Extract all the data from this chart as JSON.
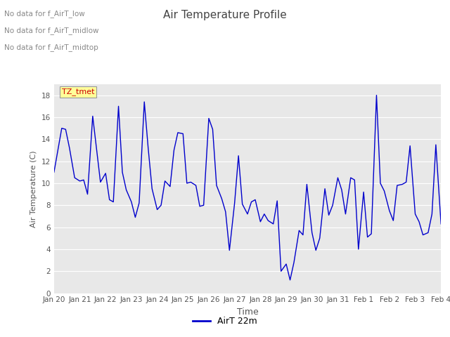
{
  "title": "Air Temperature Profile",
  "xlabel": "Time",
  "ylabel": "Air Temperature (C)",
  "legend_label": "AirT 22m",
  "line_color": "#0000cc",
  "background_color": "#e8e8e8",
  "ylim": [
    0,
    19
  ],
  "yticks": [
    0,
    2,
    4,
    6,
    8,
    10,
    12,
    14,
    16,
    18
  ],
  "x_tick_labels": [
    "Jan 20",
    "Jan 21",
    "Jan 22",
    "Jan 23",
    "Jan 24",
    "Jan 25",
    "Jan 26",
    "Jan 27",
    "Jan 28",
    "Jan 29",
    "Jan 30",
    "Jan 31",
    "Feb 1",
    "Feb 2",
    "Feb 3",
    "Feb 4"
  ],
  "annotations": [
    "No data for f_AirT_low",
    "No data for f_AirT_midlow",
    "No data for f_AirT_midtop"
  ],
  "annotation_box_label": "TZ_tmet",
  "x_values": [
    0,
    0.15,
    0.3,
    0.45,
    0.6,
    0.8,
    1.0,
    1.15,
    1.3,
    1.5,
    1.65,
    1.8,
    2.0,
    2.15,
    2.3,
    2.5,
    2.65,
    2.8,
    3.0,
    3.15,
    3.3,
    3.5,
    3.65,
    3.8,
    4.0,
    4.15,
    4.3,
    4.5,
    4.65,
    4.8,
    5.0,
    5.15,
    5.3,
    5.5,
    5.65,
    5.8,
    6.0,
    6.15,
    6.3,
    6.5,
    6.65,
    6.8,
    7.0,
    7.15,
    7.3,
    7.5,
    7.65,
    7.8,
    8.0,
    8.15,
    8.3,
    8.5,
    8.65,
    8.8,
    9.0,
    9.15,
    9.3,
    9.5,
    9.65,
    9.8,
    10.0,
    10.15,
    10.3,
    10.5,
    10.65,
    10.8,
    11.0,
    11.15,
    11.3,
    11.5,
    11.65,
    11.8,
    12.0,
    12.15,
    12.3,
    12.5,
    12.65,
    12.8,
    13.0,
    13.15,
    13.3,
    13.5,
    13.65,
    13.8,
    14.0,
    14.15,
    14.3,
    14.5,
    14.65,
    14.8,
    15.0
  ],
  "y_values": [
    11,
    13,
    15,
    14.9,
    13.2,
    10.5,
    10.2,
    10.3,
    9.0,
    16.1,
    13.1,
    10.1,
    10.9,
    8.5,
    8.3,
    17.0,
    11.0,
    9.4,
    8.3,
    6.9,
    8.2,
    17.4,
    13.2,
    9.5,
    7.6,
    8.0,
    10.2,
    9.7,
    13.0,
    14.6,
    14.5,
    10.0,
    10.1,
    9.8,
    7.9,
    8.0,
    15.9,
    14.9,
    9.8,
    8.6,
    7.4,
    3.9,
    8.2,
    12.5,
    8.1,
    7.2,
    8.3,
    8.5,
    6.5,
    7.2,
    6.6,
    6.3,
    8.4,
    2.0,
    2.65,
    1.2,
    2.8,
    5.7,
    5.3,
    9.9,
    5.5,
    3.9,
    5.0,
    9.5,
    7.1,
    8.0,
    10.5,
    9.4,
    7.2,
    10.5,
    10.3,
    4.0,
    9.2,
    5.1,
    5.4,
    18.0,
    10.0,
    9.3,
    7.5,
    6.6,
    9.8,
    9.9,
    10.1,
    13.4,
    7.2,
    6.5,
    5.3,
    5.5,
    7.2,
    13.5,
    6.3
  ],
  "title_color": "#444444",
  "label_color": "#555555",
  "grid_color": "#ffffff",
  "ann_color": "#888888",
  "box_text_color": "#cc0000",
  "box_face_color": "#ffff99",
  "box_edge_color": "#999999"
}
